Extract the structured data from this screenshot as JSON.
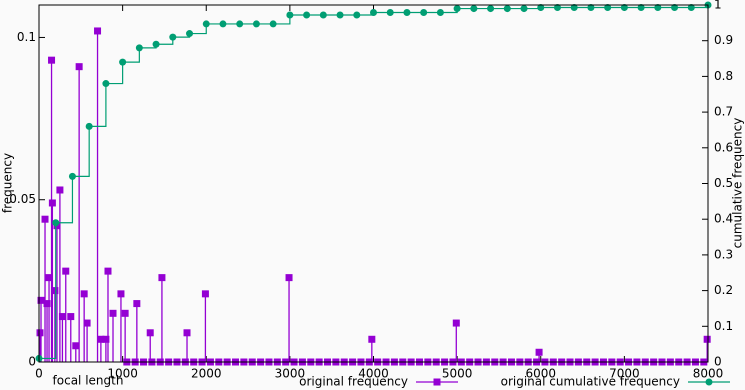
{
  "chart_data": {
    "type": "impulses-steps",
    "xlabel": "focal length",
    "ylabel": "frequency",
    "y2label": "cumulative frequency",
    "xlim": [
      0,
      8000
    ],
    "xticks": [
      0,
      1000,
      2000,
      3000,
      4000,
      5000,
      6000,
      7000,
      8000
    ],
    "ylim": [
      0,
      0.11
    ],
    "yticks": [
      0,
      0.05,
      0.1
    ],
    "y2lim": [
      0,
      1
    ],
    "y2ticks": [
      0,
      0.1,
      0.2,
      0.3,
      0.4,
      0.5,
      0.6,
      0.7,
      0.8,
      0.9,
      1
    ],
    "grid": false,
    "legend": "bottom",
    "series": [
      {
        "name": "original frequency",
        "color": "#9400d3",
        "style": "impulses",
        "marker": "square",
        "x": [
          12,
          24,
          72,
          96,
          120,
          150,
          160,
          190,
          215,
          250,
          280,
          320,
          380,
          440,
          480,
          540,
          575,
          700,
          740,
          800,
          825,
          885,
          980,
          1030,
          1170,
          1330,
          1470,
          1770,
          1990,
          2990,
          3980,
          4990,
          5980,
          7990,
          1050,
          1150,
          1250,
          1350,
          1450,
          1550,
          1650,
          1750,
          1850,
          1950,
          2050,
          2150,
          2250,
          2350,
          2450,
          2550,
          2650,
          2750,
          2850,
          2950,
          3050,
          3150,
          3250,
          3350,
          3450,
          3550,
          3650,
          3750,
          3850,
          3950,
          4050,
          4150,
          4250,
          4350,
          4450,
          4550,
          4650,
          4750,
          4850,
          4950,
          5050,
          5150,
          5250,
          5350,
          5450,
          5550,
          5650,
          5750,
          5850,
          5950,
          6050,
          6150,
          6250,
          6350,
          6450,
          6550,
          6650,
          6750,
          6850,
          6950,
          7050,
          7150,
          7250,
          7350,
          7450,
          7550,
          7650,
          7750,
          7850,
          7950
        ],
        "values": [
          0.009,
          0.019,
          0.044,
          0.018,
          0.026,
          0.093,
          0.049,
          0.022,
          0.042,
          0.053,
          0.014,
          0.028,
          0.014,
          0.005,
          0.091,
          0.021,
          0.012,
          0.102,
          0.007,
          0.007,
          0.028,
          0.015,
          0.021,
          0.015,
          0.018,
          0.009,
          0.026,
          0.009,
          0.021,
          0.026,
          0.007,
          0.012,
          0.003,
          0.007,
          0,
          0,
          0,
          0,
          0,
          0,
          0,
          0,
          0,
          0,
          0,
          0,
          0,
          0,
          0,
          0,
          0,
          0,
          0,
          0,
          0,
          0,
          0,
          0,
          0,
          0,
          0,
          0,
          0,
          0,
          0,
          0,
          0,
          0,
          0,
          0,
          0,
          0,
          0,
          0,
          0,
          0,
          0,
          0,
          0,
          0,
          0,
          0,
          0,
          0,
          0,
          0,
          0,
          0,
          0,
          0,
          0,
          0,
          0,
          0,
          0,
          0,
          0,
          0,
          0,
          0,
          0,
          0,
          0,
          0
        ]
      },
      {
        "name": "original cumulative frequency",
        "color": "#009e73",
        "style": "steps",
        "marker": "circle",
        "axis": "y2",
        "x": [
          0,
          200,
          400,
          600,
          800,
          1000,
          1200,
          1400,
          1600,
          1800,
          2000,
          2200,
          2400,
          2600,
          2800,
          3000,
          3200,
          3400,
          3600,
          3800,
          4000,
          4200,
          4400,
          4600,
          4800,
          5000,
          5200,
          5400,
          5600,
          5800,
          6000,
          6200,
          6400,
          6600,
          6800,
          7000,
          7200,
          7400,
          7600,
          7800,
          8000
        ],
        "values": [
          0.01,
          0.39,
          0.52,
          0.66,
          0.78,
          0.84,
          0.88,
          0.89,
          0.91,
          0.92,
          0.947,
          0.947,
          0.947,
          0.947,
          0.947,
          0.972,
          0.972,
          0.972,
          0.972,
          0.972,
          0.979,
          0.979,
          0.979,
          0.979,
          0.979,
          0.99,
          0.99,
          0.99,
          0.99,
          0.99,
          0.993,
          0.993,
          0.993,
          0.993,
          0.993,
          0.993,
          0.993,
          0.993,
          0.993,
          0.993,
          1
        ]
      }
    ]
  }
}
